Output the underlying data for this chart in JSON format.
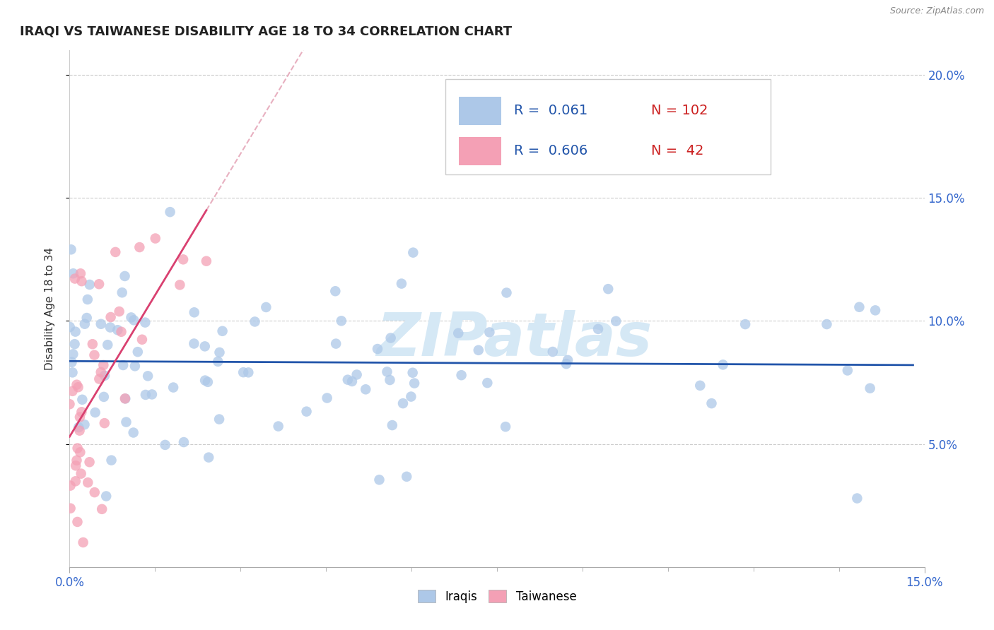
{
  "title": "IRAQI VS TAIWANESE DISABILITY AGE 18 TO 34 CORRELATION CHART",
  "source_text": "Source: ZipAtlas.com",
  "ylabel": "Disability Age 18 to 34",
  "xlim": [
    0.0,
    0.15
  ],
  "ylim": [
    0.0,
    0.21
  ],
  "yticks": [
    0.05,
    0.1,
    0.15,
    0.2
  ],
  "ytick_labels": [
    "5.0%",
    "10.0%",
    "15.0%",
    "20.0%"
  ],
  "iraqi_color": "#adc8e8",
  "taiwanese_color": "#f4a0b5",
  "iraqi_line_color": "#2255aa",
  "taiwanese_line_color": "#d94070",
  "taiwanese_dashed_color": "#e8b0c0",
  "tick_color": "#3366cc",
  "background_color": "#ffffff",
  "watermark_color": "#d5e8f5",
  "iraqi_R": 0.061,
  "iraqi_N": 102,
  "taiwanese_R": 0.606,
  "taiwanese_N": 42,
  "title_fontsize": 13,
  "tick_fontsize": 12,
  "legend_fontsize": 14
}
